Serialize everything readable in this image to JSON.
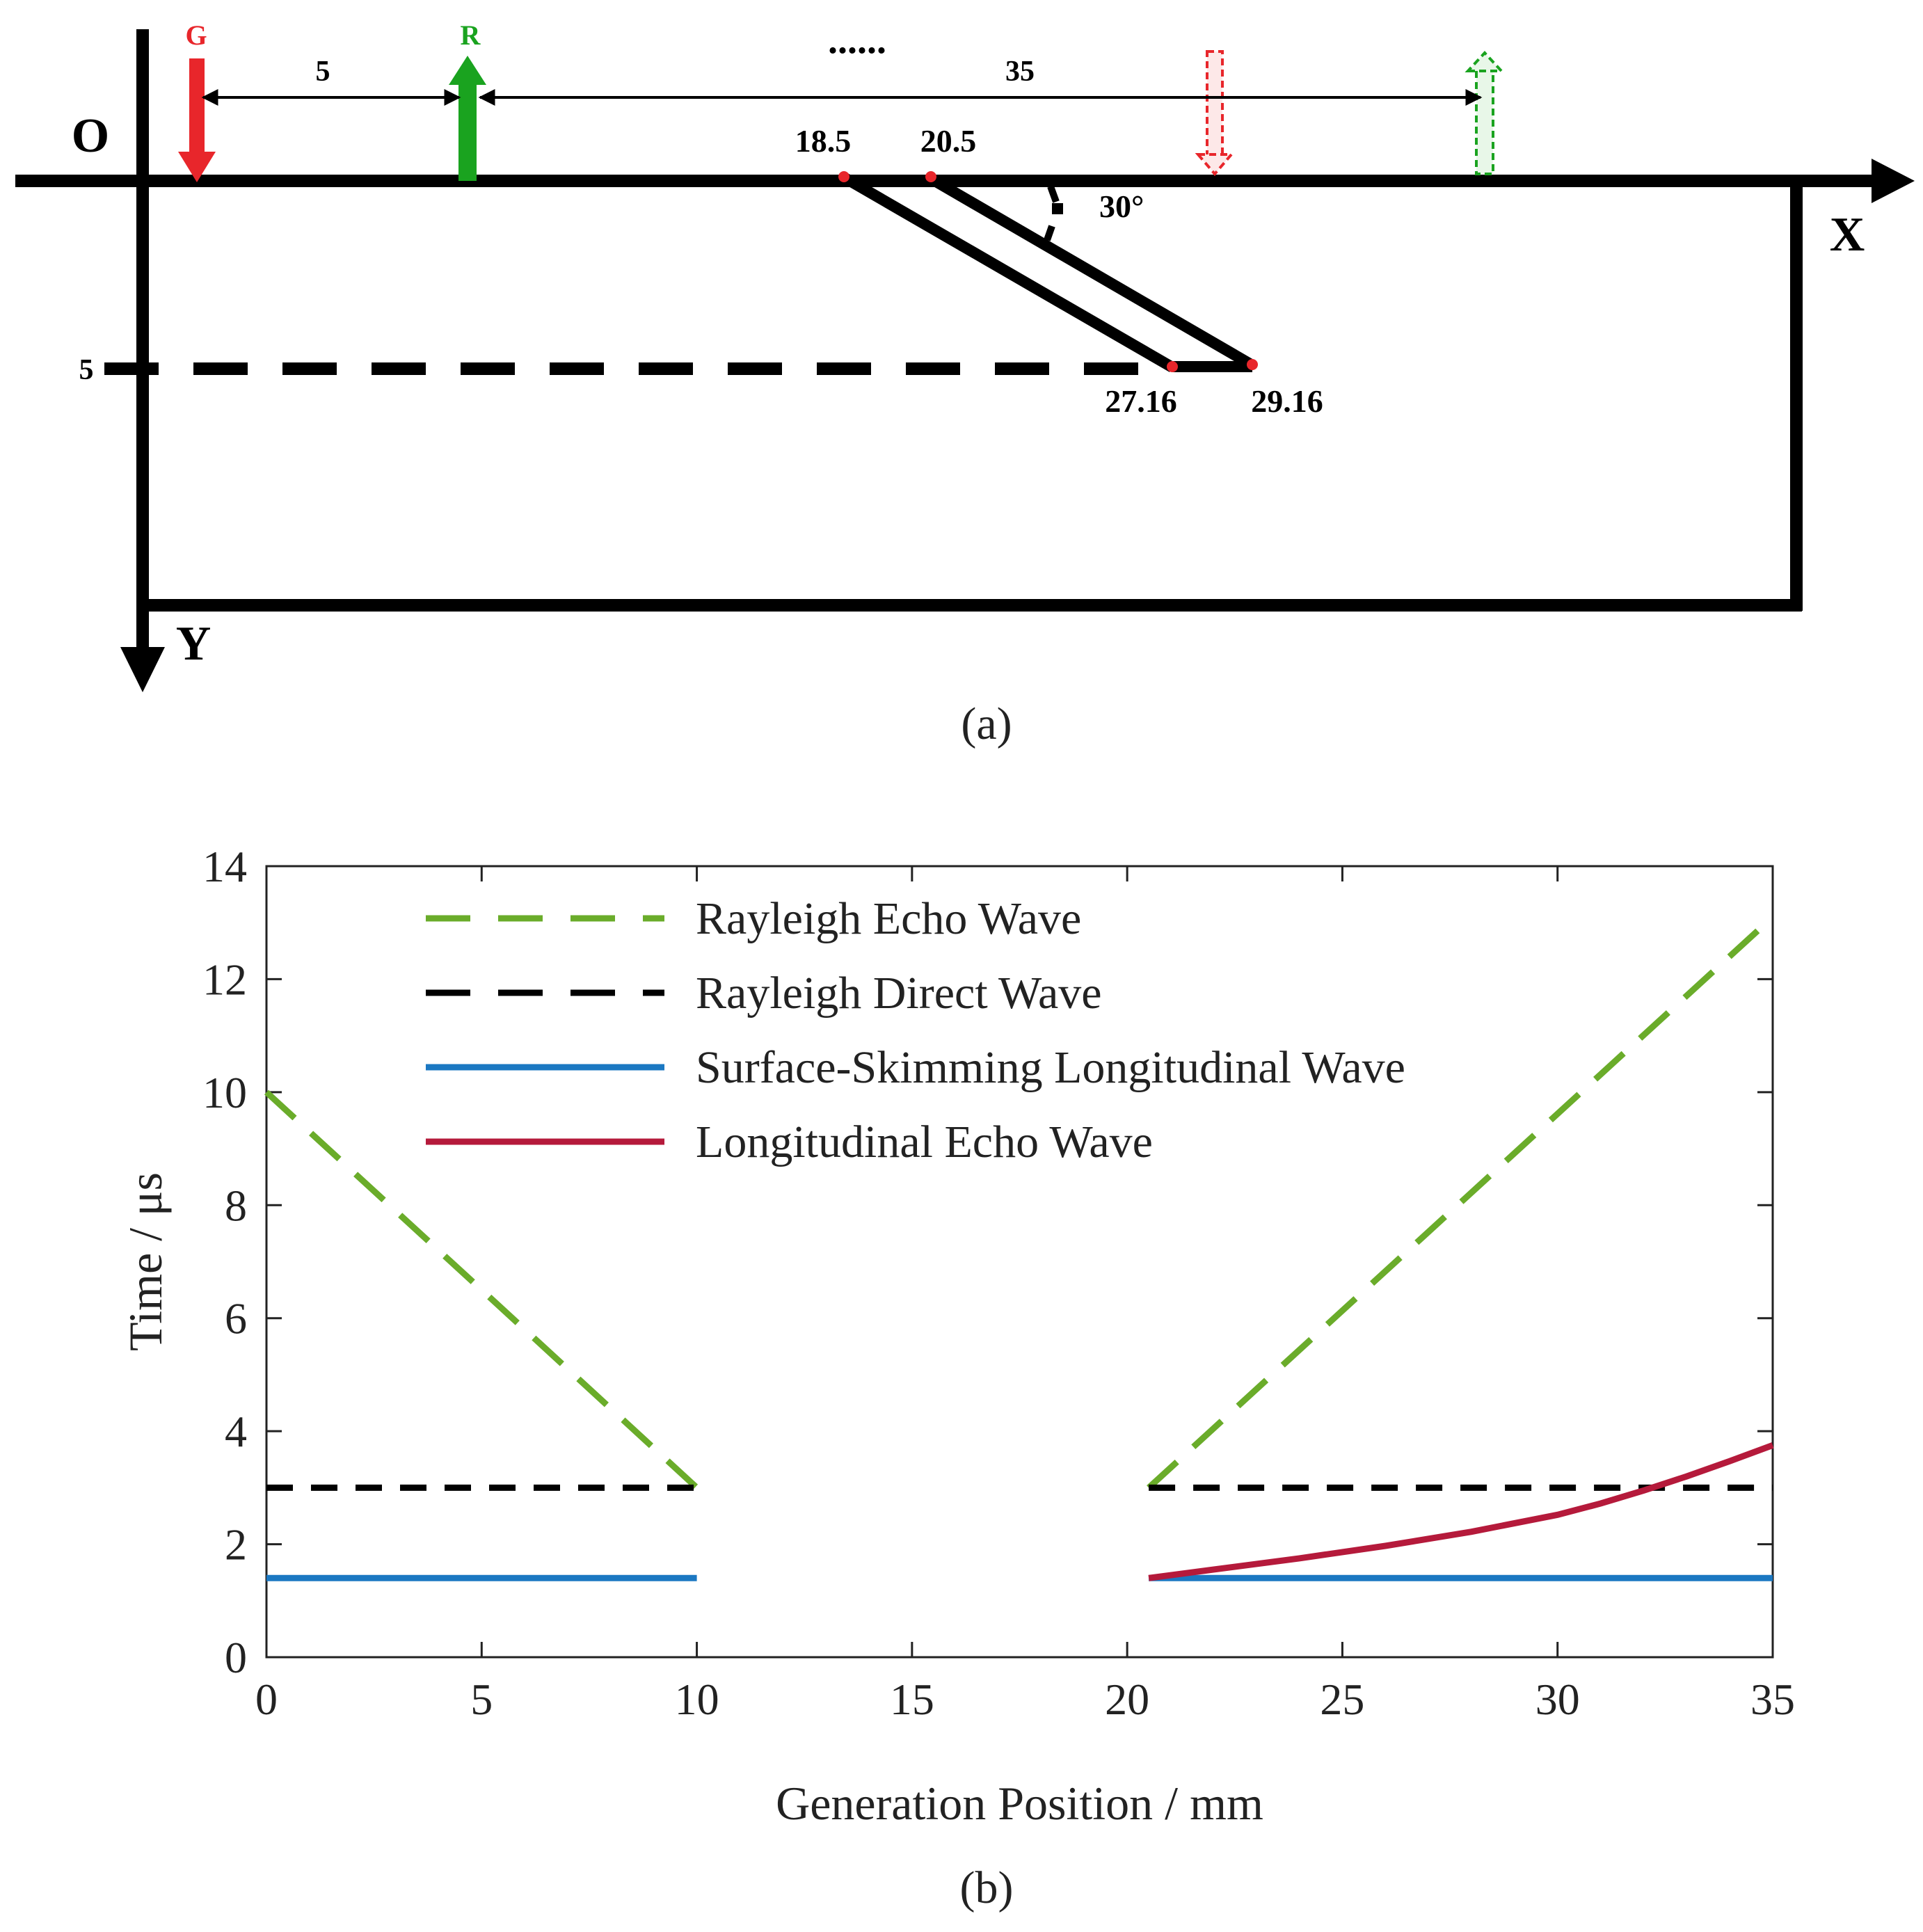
{
  "diagram": {
    "caption": "(a)",
    "origin_label": "O",
    "x_axis_label": "X",
    "y_axis_label": "Y",
    "generator_label": "G",
    "receiver_label": "R",
    "spacing_label": "5",
    "scan_label": "35",
    "ellipsis": "......",
    "depth_label": "5",
    "angle_label": "30°",
    "crack_points": {
      "top_left": "18.5",
      "top_right": "20.5",
      "bottom_left": "27.16",
      "bottom_right": "29.16"
    },
    "colors": {
      "generator": "#e8262b",
      "receiver": "#1aa31f",
      "crack_point": "#e8262b"
    }
  },
  "chart_data": {
    "type": "line",
    "caption": "(b)",
    "title": "",
    "xlabel": "Generation Position / mm",
    "ylabel": "Time / μs",
    "xlim": [
      0,
      35
    ],
    "ylim": [
      0,
      14
    ],
    "xticks": [
      0,
      5,
      10,
      15,
      20,
      25,
      30,
      35
    ],
    "yticks": [
      0,
      2,
      4,
      6,
      8,
      10,
      12,
      14
    ],
    "xtick_labels": [
      "0",
      "5",
      "10",
      "15",
      "20",
      "25",
      "30",
      "35"
    ],
    "ytick_labels": [
      "0",
      "2",
      "4",
      "6",
      "8",
      "10",
      "12",
      "14"
    ],
    "legend_position": "top-left",
    "series": [
      {
        "name": "Rayleigh Echo Wave",
        "color": "#6aac2a",
        "style": "dashed",
        "segments": [
          [
            [
              0,
              10.0
            ],
            [
              10,
              3.0
            ]
          ],
          [
            [
              20.5,
              3.0
            ],
            [
              35,
              13.1
            ]
          ]
        ]
      },
      {
        "name": "Rayleigh Direct Wave",
        "color": "#000000",
        "style": "dashed",
        "segments": [
          [
            [
              0,
              3.0
            ],
            [
              10,
              3.0
            ]
          ],
          [
            [
              20.5,
              3.0
            ],
            [
              35,
              3.0
            ]
          ]
        ]
      },
      {
        "name": "Surface-Skimming Longitudinal Wave",
        "color": "#1b78c2",
        "style": "solid",
        "segments": [
          [
            [
              0,
              1.4
            ],
            [
              10,
              1.4
            ]
          ],
          [
            [
              20.5,
              1.4
            ],
            [
              35,
              1.4
            ]
          ]
        ]
      },
      {
        "name": "Longitudinal Echo Wave",
        "color": "#b51a3b",
        "style": "solid",
        "segments": [
          [
            [
              20.5,
              1.4
            ],
            [
              22,
              1.55
            ],
            [
              24,
              1.75
            ],
            [
              26,
              1.97
            ],
            [
              28,
              2.22
            ],
            [
              30,
              2.52
            ],
            [
              31,
              2.72
            ],
            [
              32,
              2.95
            ],
            [
              33,
              3.2
            ],
            [
              34,
              3.47
            ],
            [
              35,
              3.75
            ]
          ]
        ]
      }
    ]
  }
}
